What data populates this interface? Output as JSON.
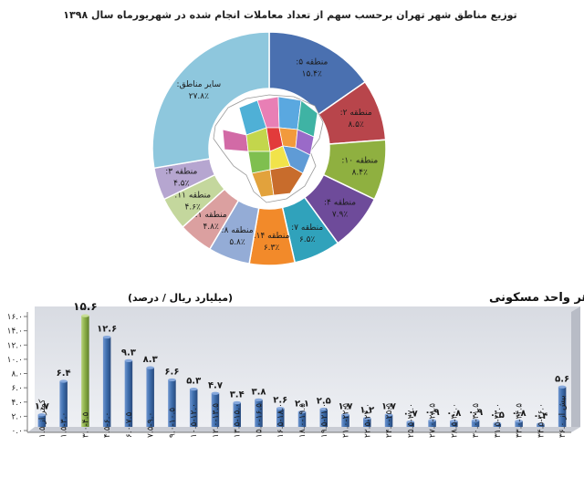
{
  "chart_data": [
    {
      "type": "pie",
      "title": "توزیع مناطق شهر تهران برحسب سهم از تعداد معاملات انجام شده در شهریورماه سال ۱۳۹۸",
      "slices": [
        {
          "label": "منطقه ۵:",
          "value_text": "۱۵.۴٪",
          "value": 15.4,
          "color": "#4a70b0"
        },
        {
          "label": "منطقه ۲:",
          "value_text": "۸.۵٪",
          "value": 8.5,
          "color": "#b8454b"
        },
        {
          "label": "منطقه ۱۰:",
          "value_text": "۸.۴٪",
          "value": 8.4,
          "color": "#8fb040"
        },
        {
          "label": "منطقه ۴:",
          "value_text": "۷.۹٪",
          "value": 7.9,
          "color": "#6e4b9a"
        },
        {
          "label": "منطقه ۷:",
          "value_text": "۶.۵٪",
          "value": 6.5,
          "color": "#30a2bb"
        },
        {
          "label": "منطقه ۱۴:",
          "value_text": "۶.۳٪",
          "value": 6.3,
          "color": "#f28a2a"
        },
        {
          "label": "منطقه ۸:",
          "value_text": "۵.۸٪",
          "value": 5.8,
          "color": "#94acd6"
        },
        {
          "label": "منطقه ۱:",
          "value_text": "۴.۸٪",
          "value": 4.8,
          "color": "#dba0a0"
        },
        {
          "label": "منطقه ۱۱:",
          "value_text": "۴.۶٪",
          "value": 4.6,
          "color": "#c4d79d"
        },
        {
          "label": "منطقه ۳:",
          "value_text": "۴.۵٪",
          "value": 4.5,
          "color": "#b6a6d0"
        },
        {
          "label": "سایر مناطق:",
          "value_text": "۲۷.۸٪",
          "value": 27.8,
          "color": "#8ec7dd"
        }
      ]
    },
    {
      "type": "bar",
      "title": "توزیع فراوانی تعداد معاملات انجام شده بر اساس ارزش هر واحد مسکونی",
      "unit_label": "(میلیارد ریال / درصد)",
      "ylim": [
        0,
        16
      ],
      "yticks": [
        "۰.۰",
        "۲.۰",
        "۴.۰",
        "۶.۰",
        "۸.۰",
        "۱۰.۰",
        "۱۲.۰",
        "۱۴.۰",
        "۱۶.۰"
      ],
      "grid": false,
      "categories": [
        "کمتر از ۱.۵",
        "۱.۵-۳.۰",
        "۳.۰-۴.۵",
        "۴.۵-۶.۰",
        "۶.۰-۷.۵",
        "۷.۵-۹.۰",
        "۹.۰-۱۰.۵",
        "۱۰.۵-۱۲.۰",
        "۱۲.۰-۱۳.۵",
        "۱۳.۵-۱۵.۰",
        "۱۵.۰-۱۶.۵",
        "۱۶.۵-۱۸.۰",
        "۱۸.۰-۱۹.۵",
        "۱۹.۵-۲۱.۰",
        "۲۱.۰-۲۲.۵",
        "۲۲.۵-۲۴.۰",
        "۲۴.۰-۲۵.۵",
        "۲۵.۵-۲۷.۰",
        "۲۷.۰-۲۸.۵",
        "۲۸.۵-۳۰.۰",
        "۳۰.۰-۳۱.۵",
        "۳۱.۵-۳۳.۰",
        "۳۳.۰-۳۴.۵",
        "۳۴.۵-۳۶.۰",
        "بیش از ۳۶.۰"
      ],
      "values": [
        1.7,
        6.4,
        15.6,
        12.6,
        9.3,
        8.3,
        6.6,
        5.3,
        4.7,
        3.4,
        3.8,
        2.6,
        2.1,
        2.5,
        1.7,
        1.2,
        1.7,
        0.7,
        0.9,
        0.8,
        0.9,
        0.5,
        0.8,
        0.4,
        5.6
      ],
      "value_labels": [
        "۱.۷",
        "۶.۴",
        "۱۵.۶",
        "۱۲.۶",
        "۹.۳",
        "۸.۳",
        "۶.۶",
        "۵.۳",
        "۴.۷",
        "۳.۴",
        "۳.۸",
        "۲.۶",
        "۲.۱",
        "۲.۵",
        "۱.۷",
        "۱.۲",
        "۱.۷",
        "۰.۷",
        "۰.۹",
        "۰.۸",
        "۰.۹",
        "۰.۵",
        "۰.۸",
        "۰.۴",
        "۵.۶"
      ],
      "highlight_index": 2,
      "bar_color": "#3f6fae",
      "highlight_color": "#8db04a"
    }
  ]
}
